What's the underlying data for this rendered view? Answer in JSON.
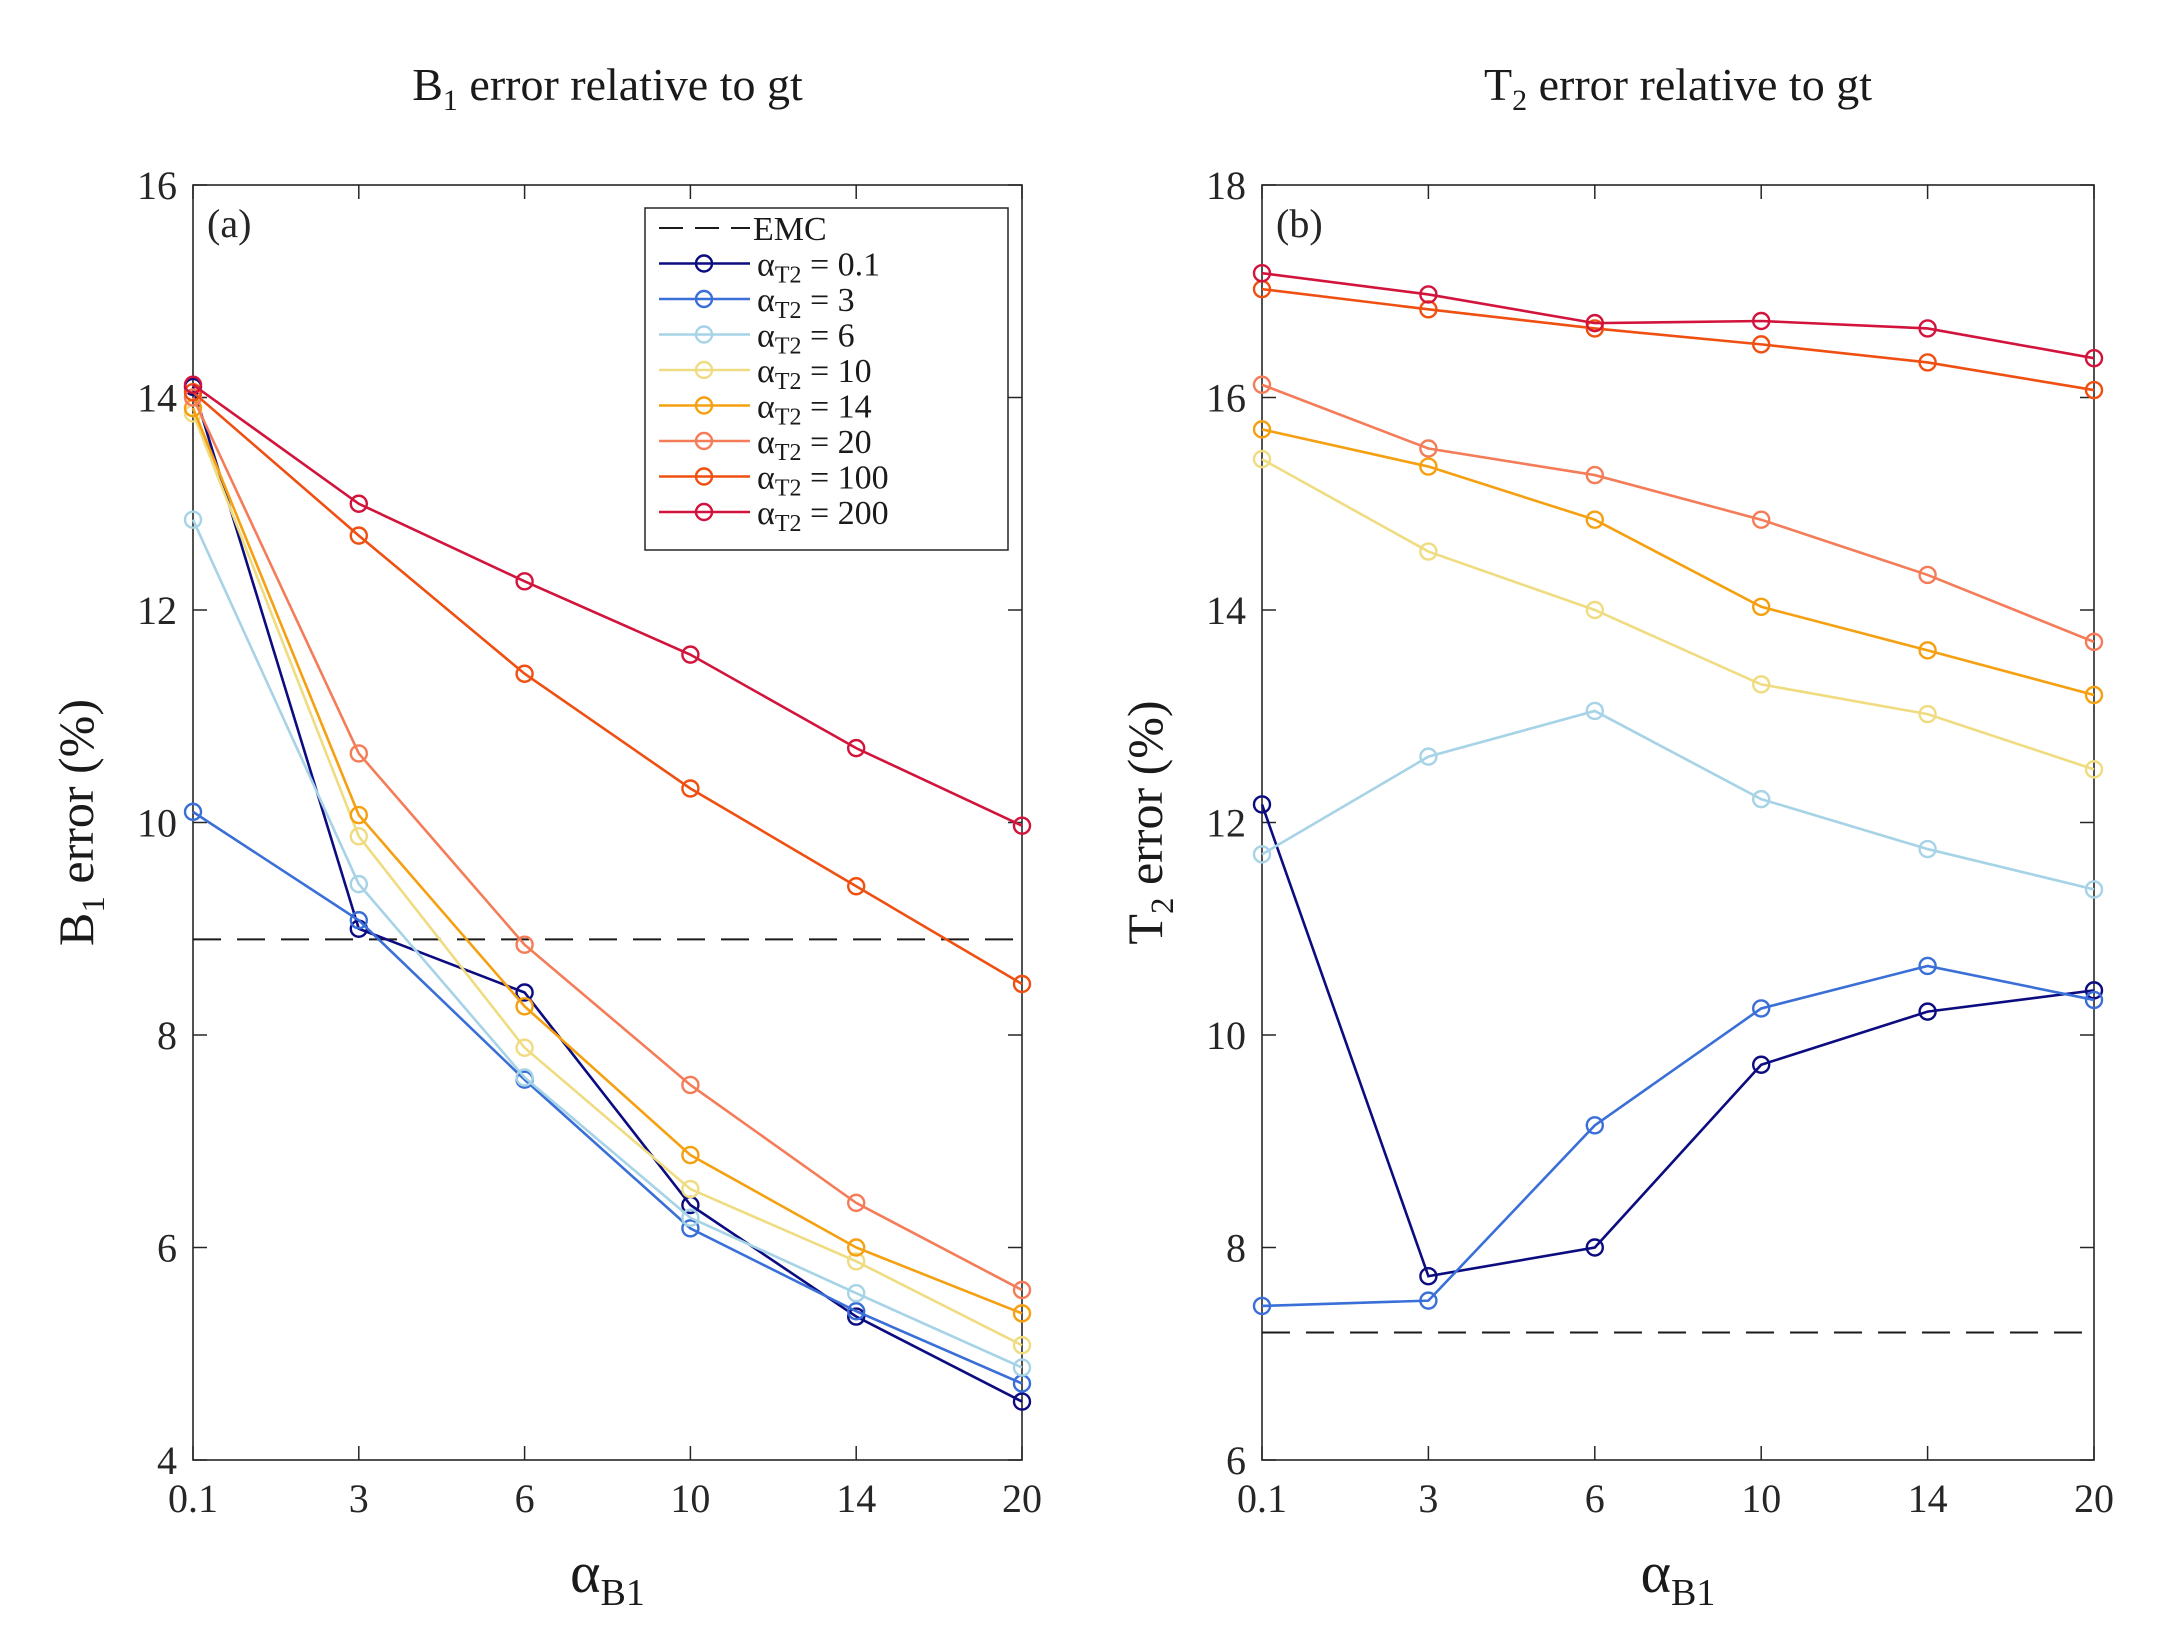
{
  "chart_data": [
    {
      "type": "line",
      "title": {
        "main": "B",
        "sub": "1",
        "rest": " error relative to gt"
      },
      "panel_label": "(a)",
      "ylabel": {
        "main": "B",
        "sub": "1",
        "rest": " error (%)"
      },
      "xlabel": {
        "main": "α",
        "sub": "B1"
      },
      "categories": [
        "0.1",
        "3",
        "6",
        "10",
        "14",
        "20"
      ],
      "ylim": [
        4,
        16
      ],
      "yticks": [
        4,
        6,
        8,
        10,
        12,
        14,
        16
      ],
      "reference": {
        "name": "EMC",
        "value": 8.9
      },
      "legend_position": "top-right",
      "series": [
        {
          "name": "α",
          "sub": "T2",
          "eq": " = 0.1",
          "color": "#0c0c80",
          "values": [
            14.1,
            9.0,
            8.4,
            6.4,
            5.35,
            4.55
          ]
        },
        {
          "name": "α",
          "sub": "T2",
          "eq": " = 3",
          "color": "#3a6fd8",
          "values": [
            10.1,
            9.08,
            7.58,
            6.18,
            5.4,
            4.72
          ]
        },
        {
          "name": "α",
          "sub": "T2",
          "eq": " = 6",
          "color": "#a6d3e6",
          "values": [
            12.85,
            9.42,
            7.6,
            6.28,
            5.57,
            4.87
          ]
        },
        {
          "name": "α",
          "sub": "T2",
          "eq": " = 10",
          "color": "#f0dc80",
          "values": [
            13.85,
            9.87,
            7.88,
            6.55,
            5.87,
            5.08
          ]
        },
        {
          "name": "α",
          "sub": "T2",
          "eq": " = 14",
          "color": "#f5a010",
          "values": [
            13.9,
            10.07,
            8.27,
            6.87,
            6.0,
            5.38
          ]
        },
        {
          "name": "α",
          "sub": "T2",
          "eq": " = 20",
          "color": "#f47c58",
          "values": [
            14.0,
            10.65,
            8.85,
            7.53,
            6.42,
            5.6
          ]
        },
        {
          "name": "α",
          "sub": "T2",
          "eq": " = 100",
          "color": "#ef5012",
          "values": [
            14.05,
            12.7,
            11.4,
            10.32,
            9.4,
            8.48
          ]
        },
        {
          "name": "α",
          "sub": "T2",
          "eq": " = 200",
          "color": "#d2143c",
          "values": [
            14.12,
            13.0,
            12.27,
            11.58,
            10.7,
            9.97
          ]
        }
      ]
    },
    {
      "type": "line",
      "title": {
        "main": "T",
        "sub": "2",
        "rest": " error relative to gt"
      },
      "panel_label": "(b)",
      "ylabel": {
        "main": "T",
        "sub": "2",
        "rest": " error (%)"
      },
      "xlabel": {
        "main": "α",
        "sub": "B1"
      },
      "categories": [
        "0.1",
        "3",
        "6",
        "10",
        "14",
        "20"
      ],
      "ylim": [
        6,
        18
      ],
      "yticks": [
        6,
        8,
        10,
        12,
        14,
        16,
        18
      ],
      "reference": {
        "name": "EMC",
        "value": 7.2
      },
      "series": [
        {
          "name": "α",
          "sub": "T2",
          "eq": " = 0.1",
          "color": "#0c0c80",
          "values": [
            12.17,
            7.73,
            8.0,
            9.72,
            10.22,
            10.42
          ]
        },
        {
          "name": "α",
          "sub": "T2",
          "eq": " = 3",
          "color": "#3a6fd8",
          "values": [
            7.45,
            7.5,
            9.15,
            10.25,
            10.65,
            10.33
          ]
        },
        {
          "name": "α",
          "sub": "T2",
          "eq": " = 6",
          "color": "#a6d3e6",
          "values": [
            11.7,
            12.62,
            13.05,
            12.22,
            11.75,
            11.37
          ]
        },
        {
          "name": "α",
          "sub": "T2",
          "eq": " = 10",
          "color": "#f0dc80",
          "values": [
            15.42,
            14.55,
            14.0,
            13.3,
            13.02,
            12.5
          ]
        },
        {
          "name": "α",
          "sub": "T2",
          "eq": " = 14",
          "color": "#f5a010",
          "values": [
            15.7,
            15.35,
            14.85,
            14.03,
            13.62,
            13.2
          ]
        },
        {
          "name": "α",
          "sub": "T2",
          "eq": " = 20",
          "color": "#f47c58",
          "values": [
            16.12,
            15.52,
            15.27,
            14.85,
            14.33,
            13.7
          ]
        },
        {
          "name": "α",
          "sub": "T2",
          "eq": " = 100",
          "color": "#ef5012",
          "values": [
            17.02,
            16.83,
            16.65,
            16.5,
            16.33,
            16.07
          ]
        },
        {
          "name": "α",
          "sub": "T2",
          "eq": " = 200",
          "color": "#d2143c",
          "values": [
            17.17,
            16.97,
            16.7,
            16.72,
            16.65,
            16.37
          ]
        }
      ]
    }
  ]
}
